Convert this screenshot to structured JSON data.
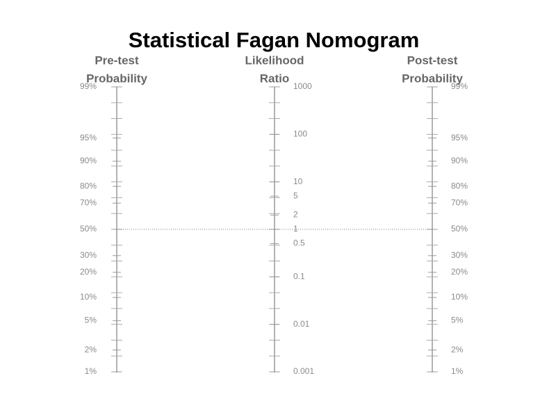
{
  "chart_data": {
    "type": "nomogram",
    "title": "Statistical Fagan Nomogram",
    "axes": [
      {
        "title": [
          "Pre-test",
          "Probability"
        ],
        "scale": "logit",
        "ylim": [
          1,
          99
        ],
        "label_side": "left",
        "yticks": [
          {
            "value": 99,
            "label": "99%"
          },
          {
            "value": 95,
            "label": "95%"
          },
          {
            "value": 90,
            "label": "90%"
          },
          {
            "value": 80,
            "label": "80%"
          },
          {
            "value": 70,
            "label": "70%"
          },
          {
            "value": 50,
            "label": "50%"
          },
          {
            "value": 30,
            "label": "30%"
          },
          {
            "value": 20,
            "label": "20%"
          },
          {
            "value": 10,
            "label": "10%"
          },
          {
            "value": 5,
            "label": "5%"
          },
          {
            "value": 2,
            "label": "2%"
          },
          {
            "value": 1,
            "label": "1%"
          }
        ]
      },
      {
        "title": [
          "Likelihood",
          "Ratio"
        ],
        "scale": "log",
        "ylim": [
          0.001,
          1000
        ],
        "label_side": "right",
        "yticks": [
          1000,
          100,
          10,
          5,
          2,
          1,
          0.5,
          0.1,
          0.01,
          0.001
        ]
      },
      {
        "title": [
          "Post-test",
          "Probability"
        ],
        "scale": "logit",
        "ylim": [
          1,
          99
        ],
        "label_side": "right",
        "yticks": [
          {
            "value": 99,
            "label": "99%"
          },
          {
            "value": 95,
            "label": "95%"
          },
          {
            "value": 90,
            "label": "90%"
          },
          {
            "value": 80,
            "label": "80%"
          },
          {
            "value": 70,
            "label": "70%"
          },
          {
            "value": 50,
            "label": "50%"
          },
          {
            "value": 30,
            "label": "30%"
          },
          {
            "value": 20,
            "label": "20%"
          },
          {
            "value": 10,
            "label": "10%"
          },
          {
            "value": 5,
            "label": "5%"
          },
          {
            "value": 2,
            "label": "2%"
          },
          {
            "value": 1,
            "label": "1%"
          }
        ]
      }
    ],
    "line": {
      "pre_test": 50,
      "likelihood_ratio": 1
    }
  }
}
